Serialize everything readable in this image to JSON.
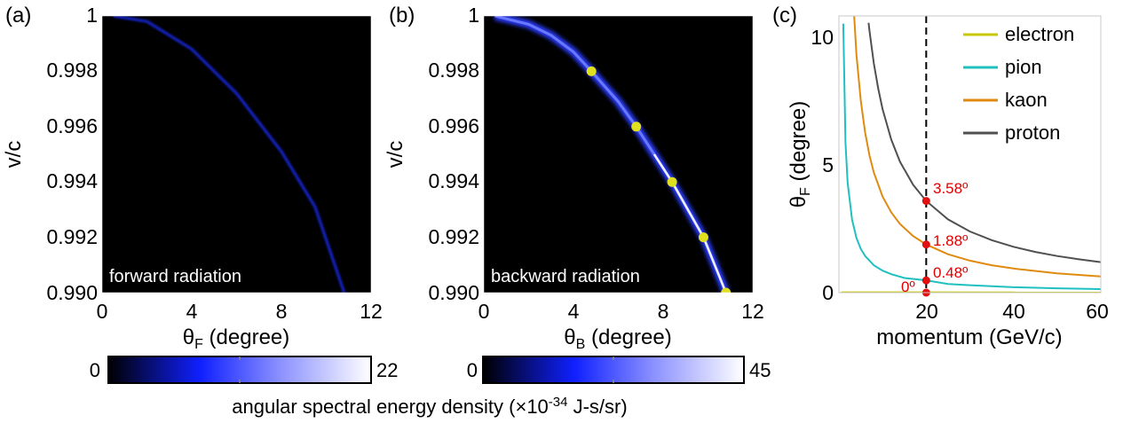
{
  "panels": {
    "a": {
      "label": "(a)",
      "inset_text": "forward radiation",
      "xlabel_symbol": "θ",
      "xlabel_sub": "F",
      "xlabel_unit": " (degree)",
      "ylabel": "v/c",
      "xticks": [
        "0",
        "4",
        "8",
        "12"
      ],
      "yticks": [
        "0.990",
        "0.992",
        "0.994",
        "0.996",
        "0.998",
        "1"
      ],
      "colorbar": {
        "min_label": "0",
        "max_label": "22"
      }
    },
    "b": {
      "label": "(b)",
      "inset_text": "backward radiation",
      "xlabel_symbol": "θ",
      "xlabel_sub": "B",
      "xlabel_unit": " (degree)",
      "ylabel": "v/c",
      "xticks": [
        "0",
        "4",
        "8",
        "12"
      ],
      "yticks": [
        "0.990",
        "0.992",
        "0.994",
        "0.996",
        "0.998",
        "1"
      ],
      "colorbar": {
        "min_label": "0",
        "max_label": "45"
      }
    },
    "c": {
      "label": "(c)",
      "xlabel": "momentum (GeV/c)",
      "ylabel_symbol": "θ",
      "ylabel_sub": "F",
      "ylabel_unit": " (degree)",
      "xticks": [
        "20",
        "40",
        "60"
      ],
      "yticks": [
        "0",
        "5",
        "10"
      ],
      "annotations": [
        "3.58º",
        "1.88º",
        "0.48º",
        "0º"
      ]
    }
  },
  "colorbar_caption": {
    "prefix": "angular spectral energy density (×10",
    "exponent": "-34",
    "suffix": " J-s/sr)"
  },
  "colors": {
    "electron": "#c8c800",
    "pion": "#20c0c0",
    "kaon": "#e08a10",
    "proton": "#505050",
    "marker": "#e01010",
    "bright_point": "#e0e020",
    "glow": "#2a3cff"
  },
  "chart_data": [
    {
      "type": "heatmap",
      "title": "forward radiation",
      "xlabel": "θF (degree)",
      "ylabel": "v/c",
      "xlim": [
        0,
        12
      ],
      "ylim": [
        0.99,
        1.0
      ],
      "colorbar_range": [
        0,
        22
      ],
      "ridge": {
        "x": [
          0.5,
          2.0,
          4.0,
          6.0,
          8.0,
          9.5,
          10.8
        ],
        "y": [
          1.0,
          0.9998,
          0.9988,
          0.9972,
          0.9951,
          0.9931,
          0.99
        ]
      }
    },
    {
      "type": "heatmap",
      "title": "backward radiation",
      "xlabel": "θB (degree)",
      "ylabel": "v/c",
      "xlim": [
        0,
        12
      ],
      "ylim": [
        0.99,
        1.0
      ],
      "colorbar_range": [
        0,
        45
      ],
      "ridge": {
        "x": [
          0.5,
          2.0,
          3.0,
          4.0,
          4.8,
          6.0,
          6.8,
          7.6,
          8.4,
          9.1,
          9.8,
          10.3,
          10.8
        ],
        "y": [
          1.0,
          0.9997,
          0.9993,
          0.9987,
          0.998,
          0.9969,
          0.996,
          0.995,
          0.994,
          0.993,
          0.992,
          0.991,
          0.99
        ]
      },
      "markers": {
        "x": [
          4.8,
          6.8,
          8.4,
          9.8,
          10.8
        ],
        "y": [
          0.998,
          0.996,
          0.994,
          0.992,
          0.99
        ]
      }
    },
    {
      "type": "line",
      "xlabel": "momentum (GeV/c)",
      "ylabel": "θF (degree)",
      "xlim": [
        0,
        60
      ],
      "ylim": [
        0,
        10.8
      ],
      "legend_position": "top-right",
      "vline_x": 20,
      "series": [
        {
          "name": "electron",
          "x": [
            0.5,
            60
          ],
          "y": [
            0.003,
            0.0
          ]
        },
        {
          "name": "pion",
          "x": [
            1,
            1.5,
            2,
            3,
            4,
            5,
            6,
            8,
            10,
            12,
            15,
            20,
            25,
            30,
            40,
            50,
            60
          ],
          "y": [
            10.5,
            5.85,
            4.3,
            2.85,
            2.14,
            1.71,
            1.43,
            1.07,
            0.86,
            0.72,
            0.57,
            0.48,
            0.34,
            0.29,
            0.21,
            0.17,
            0.14
          ]
        },
        {
          "name": "kaon",
          "x": [
            3.5,
            4,
            5,
            6,
            7,
            8,
            10,
            12,
            14,
            17,
            20,
            25,
            30,
            35,
            40,
            50,
            60
          ],
          "y": [
            10.8,
            9.3,
            7.5,
            6.25,
            5.36,
            4.69,
            3.75,
            3.13,
            2.68,
            2.21,
            1.88,
            1.5,
            1.25,
            1.07,
            0.94,
            0.75,
            0.63
          ]
        },
        {
          "name": "proton",
          "x": [
            6.8,
            7,
            8,
            9,
            10,
            12,
            14,
            17,
            20,
            25,
            30,
            35,
            40,
            45,
            50,
            55,
            60
          ],
          "y": [
            10.53,
            10.23,
            8.95,
            7.96,
            7.16,
            5.97,
            5.11,
            4.21,
            3.58,
            2.86,
            2.39,
            2.05,
            1.79,
            1.59,
            1.43,
            1.3,
            1.19
          ]
        }
      ],
      "markers": {
        "x": [
          20,
          20,
          20,
          20
        ],
        "y": [
          3.58,
          1.88,
          0.48,
          0.0
        ]
      }
    }
  ]
}
